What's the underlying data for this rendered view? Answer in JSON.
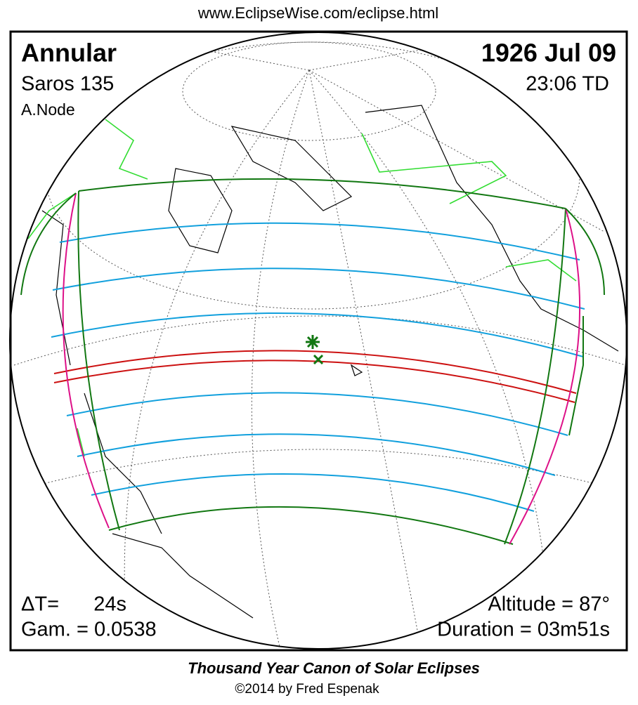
{
  "header": {
    "url": "www.EclipseWise.com/eclipse.html",
    "eclipse_type": "Annular",
    "saros": "Saros 135",
    "node": "A.Node",
    "date": "1926 Jul 09",
    "time": "23:06 TD"
  },
  "stats": {
    "delta_t_label": "ΔT=",
    "delta_t_value": "24s",
    "gamma": "Gam. = 0.0538",
    "altitude": "Altitude = 87°",
    "duration": "Duration = 03m51s"
  },
  "footer": {
    "title": "Thousand Year Canon of Solar Eclipses",
    "copyright": "©2014 by Fred Espenak"
  }
}
